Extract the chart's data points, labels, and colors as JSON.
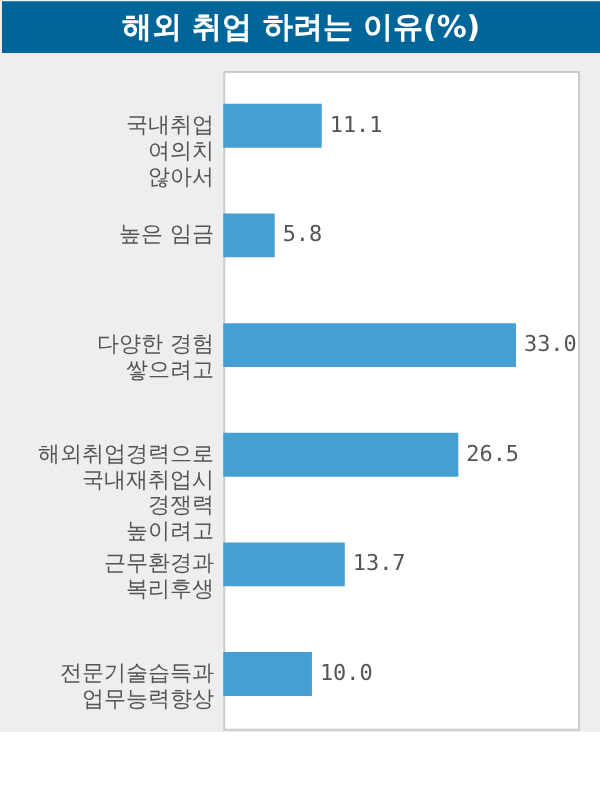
{
  "chart_data": {
    "type": "bar",
    "orientation": "horizontal",
    "title": "해외 취업 하려는 이유(%)",
    "categories": [
      "국내취업\n여의치\n않아서",
      "높은 임금",
      "다양한 경험\n쌓으려고",
      "해외취업경력으로\n국내재취업시\n경쟁력\n높이려고",
      "근무환경과\n복리후생",
      "전문기술습득과\n업무능력향상"
    ],
    "values": [
      11.1,
      5.8,
      33.0,
      26.5,
      13.7,
      10.0
    ],
    "value_labels": [
      "11.1",
      "5.8",
      "33.0",
      "26.5",
      "13.7",
      "10.0"
    ],
    "color": "#469fd1",
    "xlim": [
      0,
      40
    ],
    "tick_labels": "y"
  }
}
